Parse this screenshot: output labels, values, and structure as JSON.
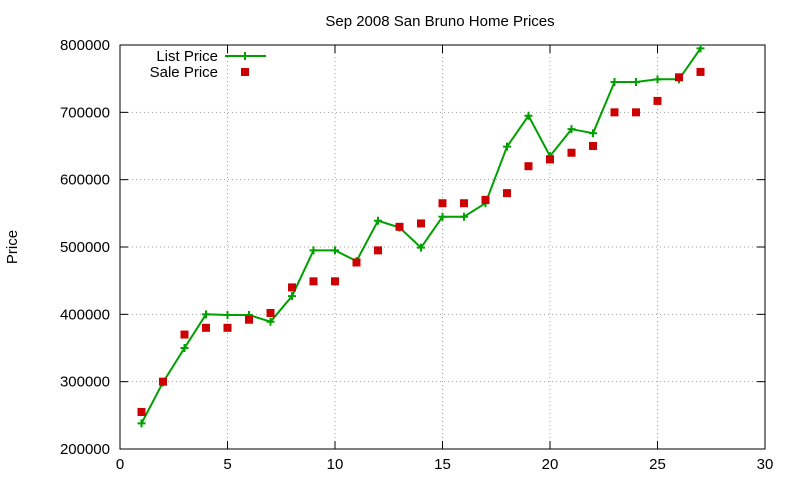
{
  "chart_data": {
    "type": "line",
    "title": "Sep 2008 San Bruno Home Prices",
    "xlabel": "",
    "ylabel": "Price",
    "xlim": [
      0,
      30
    ],
    "ylim": [
      200000,
      800000
    ],
    "xticks": [
      0,
      5,
      10,
      15,
      20,
      25,
      30
    ],
    "yticks": [
      200000,
      300000,
      400000,
      500000,
      600000,
      700000,
      800000
    ],
    "xtick_labels": [
      "0",
      "5",
      "10",
      "15",
      "20",
      "25",
      "30"
    ],
    "ytick_labels": [
      "200000",
      "300000",
      "400000",
      "500000",
      "600000",
      "700000",
      "800000"
    ],
    "grid": true,
    "legend_position": "top-left",
    "series": [
      {
        "name": "List Price",
        "style": "line-with-plus-markers",
        "color": "#00a000",
        "x": [
          1,
          2,
          3,
          4,
          5,
          6,
          7,
          8,
          9,
          10,
          11,
          12,
          13,
          14,
          15,
          16,
          17,
          18,
          19,
          20,
          21,
          22,
          23,
          24,
          25,
          26,
          27
        ],
        "values": [
          238000,
          299000,
          350000,
          400000,
          399000,
          399000,
          389000,
          427000,
          495000,
          495000,
          479000,
          539000,
          529000,
          499000,
          545000,
          545000,
          565000,
          649000,
          695000,
          635000,
          675000,
          669000,
          745000,
          745000,
          749000,
          749000,
          795000
        ]
      },
      {
        "name": "Sale Price",
        "style": "square-markers",
        "color": "#cc0000",
        "x": [
          1,
          2,
          3,
          4,
          5,
          6,
          7,
          8,
          9,
          10,
          11,
          12,
          13,
          14,
          15,
          16,
          17,
          18,
          19,
          20,
          21,
          22,
          23,
          24,
          25,
          26,
          27
        ],
        "values": [
          255000,
          300000,
          370000,
          380000,
          380000,
          392000,
          402000,
          440000,
          449000,
          449000,
          477000,
          495000,
          530000,
          535000,
          565000,
          565000,
          570000,
          580000,
          620000,
          630000,
          640000,
          650000,
          700000,
          700000,
          717000,
          752000,
          760000
        ]
      }
    ]
  }
}
